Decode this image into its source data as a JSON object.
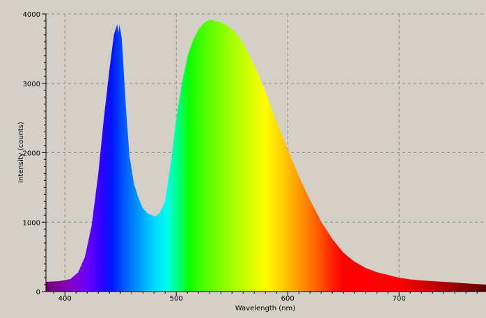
{
  "chart_data": {
    "type": "area",
    "title": "",
    "xlabel": "Wavelength (nm)",
    "ylabel": "Intensity (counts)",
    "xlim": [
      383,
      778
    ],
    "ylim": [
      0,
      4000
    ],
    "x_ticks": [
      400,
      500,
      600,
      700
    ],
    "y_ticks": [
      0,
      1000,
      2000,
      3000,
      4000
    ],
    "grid": true,
    "fill": "visible-spectrum gradient by wavelength",
    "series": [
      {
        "x": [
          383,
          395,
          405,
          412,
          418,
          424,
          430,
          435,
          440,
          444,
          446,
          447,
          448,
          449,
          450,
          451,
          452,
          455,
          458,
          462,
          466,
          470,
          474,
          478,
          481,
          485,
          490,
          495,
          500,
          505,
          510,
          515,
          520,
          525,
          528,
          531,
          535,
          540,
          545,
          550,
          555,
          560,
          565,
          570,
          575,
          580,
          590,
          600,
          610,
          620,
          630,
          640,
          650,
          660,
          670,
          680,
          690,
          700,
          710,
          720,
          730,
          740,
          750,
          760,
          770,
          778
        ],
        "y": [
          140,
          150,
          180,
          280,
          500,
          950,
          1700,
          2500,
          3200,
          3700,
          3800,
          3850,
          3720,
          3840,
          3750,
          3650,
          3400,
          2600,
          1950,
          1550,
          1350,
          1200,
          1130,
          1100,
          1080,
          1130,
          1300,
          1850,
          2500,
          3000,
          3380,
          3620,
          3780,
          3870,
          3900,
          3920,
          3900,
          3880,
          3840,
          3780,
          3700,
          3580,
          3420,
          3260,
          3080,
          2880,
          2450,
          2050,
          1660,
          1320,
          1010,
          760,
          560,
          430,
          340,
          280,
          240,
          200,
          175,
          160,
          150,
          140,
          130,
          118,
          108,
          100
        ]
      }
    ]
  }
}
